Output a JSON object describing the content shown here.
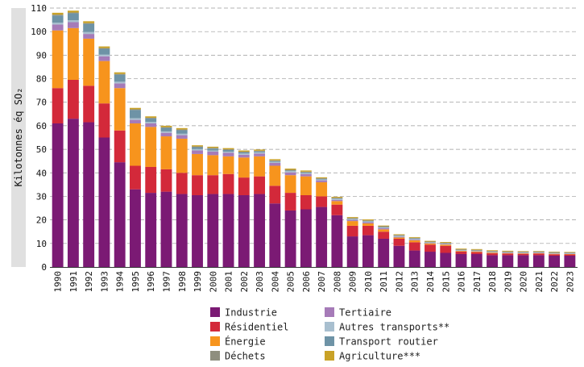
{
  "chart_data": {
    "type": "bar",
    "stacked": true,
    "title": "",
    "xlabel": "",
    "ylabel": "Kilotonnes éq SO₂",
    "ylim": [
      0,
      110
    ],
    "yticks": [
      0,
      10,
      20,
      30,
      40,
      50,
      60,
      70,
      80,
      90,
      100,
      110
    ],
    "grid": "horizontal-dashed",
    "legend_position": "bottom",
    "categories": [
      "1990",
      "1991",
      "1992",
      "1993",
      "1994",
      "1995",
      "1996",
      "1997",
      "1998",
      "1999",
      "2000",
      "2001",
      "2002",
      "2003",
      "2004",
      "2005",
      "2006",
      "2007",
      "2008",
      "2009",
      "2010",
      "2011",
      "2012",
      "2013",
      "2014",
      "2015",
      "2016",
      "2017",
      "2018",
      "2019",
      "2020",
      "2021",
      "2022",
      "2023"
    ],
    "series": [
      {
        "name": "Industrie",
        "color": "#7b1a74",
        "values": [
          61.0,
          63.0,
          61.5,
          55.0,
          44.5,
          33.0,
          31.5,
          32.0,
          31.0,
          30.5,
          31.0,
          31.0,
          30.5,
          31.0,
          27.0,
          24.0,
          24.5,
          25.5,
          22.0,
          13.0,
          13.5,
          12.0,
          9.0,
          7.0,
          6.5,
          6.0,
          5.5,
          5.5,
          5.0,
          5.0,
          5.0,
          5.0,
          4.8,
          4.8
        ]
      },
      {
        "name": "Résidentiel",
        "color": "#d3293a",
        "values": [
          15.0,
          16.5,
          15.5,
          14.5,
          13.5,
          10.0,
          11.0,
          9.5,
          9.0,
          8.5,
          8.0,
          8.5,
          7.5,
          7.5,
          7.5,
          7.5,
          6.0,
          4.5,
          4.5,
          4.5,
          4.0,
          3.0,
          3.0,
          3.5,
          3.0,
          3.0,
          1.0,
          0.8,
          0.8,
          0.7,
          0.6,
          0.7,
          0.6,
          0.5
        ]
      },
      {
        "name": "Énergie",
        "color": "#f7941d",
        "values": [
          24.5,
          22.0,
          20.0,
          18.0,
          18.0,
          18.0,
          17.0,
          14.0,
          14.5,
          9.0,
          8.5,
          7.5,
          8.5,
          8.5,
          8.5,
          7.5,
          8.0,
          6.0,
          1.5,
          2.0,
          1.0,
          1.0,
          0.5,
          0.8,
          0.5,
          0.5,
          0.3,
          0.3,
          0.3,
          0.2,
          0.2,
          0.2,
          0.2,
          0.2
        ]
      },
      {
        "name": "Tertiaire",
        "color": "#a67bb8",
        "values": [
          2.5,
          2.5,
          2.0,
          2.0,
          2.0,
          1.5,
          1.5,
          1.5,
          1.5,
          1.5,
          1.5,
          1.5,
          1.2,
          1.2,
          1.2,
          1.2,
          1.0,
          0.8,
          0.5,
          0.5,
          0.5,
          0.5,
          0.3,
          0.3,
          0.2,
          0.2,
          0.1,
          0.1,
          0.1,
          0.1,
          0.1,
          0.1,
          0.1,
          0.1
        ]
      },
      {
        "name": "Autres transports**",
        "color": "#a8bfcf",
        "values": [
          0.8,
          0.8,
          0.8,
          0.7,
          0.7,
          0.7,
          0.6,
          0.6,
          0.6,
          0.6,
          0.5,
          0.5,
          0.5,
          0.5,
          0.5,
          0.5,
          0.4,
          0.4,
          0.4,
          0.3,
          0.3,
          0.3,
          0.3,
          0.3,
          0.2,
          0.2,
          0.2,
          0.2,
          0.2,
          0.2,
          0.2,
          0.2,
          0.2,
          0.2
        ]
      },
      {
        "name": "Transport routier",
        "color": "#6e93a6",
        "values": [
          3.0,
          3.0,
          3.5,
          2.5,
          3.0,
          3.5,
          1.5,
          1.5,
          1.5,
          0.8,
          0.8,
          0.7,
          0.5,
          0.4,
          0.3,
          0.3,
          0.3,
          0.2,
          0.2,
          0.2,
          0.2,
          0.2,
          0.2,
          0.2,
          0.1,
          0.1,
          0.1,
          0.1,
          0.1,
          0.1,
          0.1,
          0.1,
          0.1,
          0.1
        ]
      },
      {
        "name": "Déchets",
        "color": "#8e8e7e",
        "values": [
          0.4,
          0.3,
          0.3,
          0.3,
          0.3,
          0.3,
          0.3,
          0.3,
          0.3,
          0.3,
          0.3,
          0.3,
          0.3,
          0.3,
          0.3,
          0.3,
          0.3,
          0.3,
          0.3,
          0.3,
          0.3,
          0.3,
          0.3,
          0.3,
          0.3,
          0.3,
          0.3,
          0.3,
          0.3,
          0.3,
          0.3,
          0.3,
          0.3,
          0.3
        ]
      },
      {
        "name": "Agriculture***",
        "color": "#c9a227",
        "values": [
          0.8,
          0.8,
          0.8,
          0.7,
          0.7,
          0.6,
          0.6,
          0.6,
          0.6,
          0.5,
          0.5,
          0.5,
          0.5,
          0.5,
          0.5,
          0.5,
          0.5,
          0.4,
          0.4,
          0.4,
          0.4,
          0.3,
          0.3,
          0.3,
          0.3,
          0.3,
          0.3,
          0.3,
          0.3,
          0.3,
          0.2,
          0.2,
          0.2,
          0.2
        ]
      }
    ],
    "legend_order": [
      "Industrie",
      "Résidentiel",
      "Énergie",
      "Déchets",
      "Tertiaire",
      "Autres transports**",
      "Transport routier",
      "Agriculture***"
    ]
  }
}
